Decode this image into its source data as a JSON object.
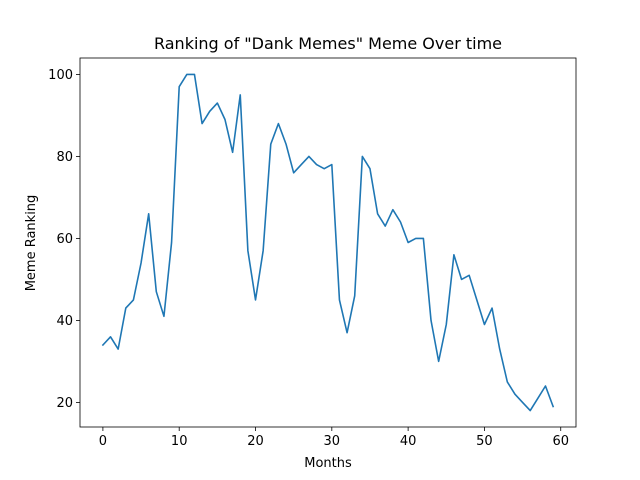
{
  "chart_data": {
    "type": "line",
    "title": "Ranking of \"Dank Memes\" Meme Over time",
    "xlabel": "Months",
    "ylabel": "Meme Ranking",
    "xlim": [
      -3,
      62
    ],
    "ylim": [
      14,
      104
    ],
    "xticks": [
      0,
      10,
      20,
      30,
      40,
      50,
      60
    ],
    "yticks": [
      20,
      40,
      60,
      80,
      100
    ],
    "grid": false,
    "legend": "none",
    "series": [
      {
        "color": "#1f77b4",
        "x": [
          0,
          1,
          2,
          3,
          4,
          5,
          6,
          7,
          8,
          9,
          10,
          11,
          12,
          13,
          14,
          15,
          16,
          17,
          18,
          19,
          20,
          21,
          22,
          23,
          24,
          25,
          26,
          27,
          28,
          29,
          30,
          31,
          32,
          33,
          34,
          35,
          36,
          37,
          38,
          39,
          40,
          41,
          42,
          43,
          44,
          45,
          46,
          47,
          48,
          49,
          50,
          51,
          52,
          53,
          54,
          55,
          56,
          57,
          58,
          59
        ],
        "values": [
          34,
          36,
          33,
          43,
          45,
          54,
          66,
          47,
          41,
          59,
          97,
          100,
          100,
          88,
          91,
          93,
          89,
          81,
          95,
          57,
          45,
          57,
          83,
          88,
          83,
          76,
          78,
          80,
          78,
          77,
          78,
          45,
          37,
          46,
          80,
          77,
          66,
          63,
          67,
          64,
          59,
          60,
          60,
          40,
          30,
          39,
          56,
          50,
          51,
          45,
          39,
          43,
          33,
          25,
          22,
          20,
          18,
          21,
          24,
          19
        ]
      }
    ]
  }
}
